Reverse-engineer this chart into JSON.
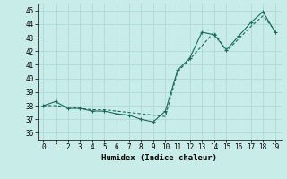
{
  "xlabel": "Humidex (Indice chaleur)",
  "bg_color": "#c8ece8",
  "grid_color": "#b0d8d4",
  "line_color": "#1a6b5a",
  "xlim": [
    -0.5,
    19.5
  ],
  "ylim": [
    35.5,
    45.5
  ],
  "xticks": [
    0,
    1,
    2,
    3,
    4,
    5,
    6,
    7,
    8,
    9,
    10,
    11,
    12,
    13,
    14,
    15,
    16,
    17,
    18,
    19
  ],
  "yticks": [
    36,
    37,
    38,
    39,
    40,
    41,
    42,
    43,
    44,
    45
  ],
  "series1_x": [
    0,
    1,
    2,
    3,
    4,
    5,
    6,
    7,
    8,
    9,
    10,
    11,
    12,
    13,
    14,
    15,
    16,
    17,
    18,
    19
  ],
  "series1_y": [
    38.0,
    38.3,
    37.8,
    37.8,
    37.6,
    37.6,
    37.4,
    37.3,
    37.0,
    36.8,
    37.6,
    40.6,
    41.5,
    43.4,
    43.2,
    42.1,
    43.1,
    44.1,
    44.9,
    43.4
  ],
  "series2_x": [
    0,
    1,
    2,
    3,
    4,
    5,
    6,
    7,
    8,
    9,
    10,
    11,
    12,
    13,
    14,
    15,
    16,
    17,
    18,
    19
  ],
  "series2_y": [
    38.0,
    38.0,
    37.9,
    37.8,
    37.7,
    37.7,
    37.6,
    37.5,
    37.4,
    37.3,
    37.2,
    40.5,
    41.4,
    42.4,
    43.4,
    42.0,
    42.9,
    43.8,
    44.6,
    43.5
  ],
  "font_family": "monospace"
}
